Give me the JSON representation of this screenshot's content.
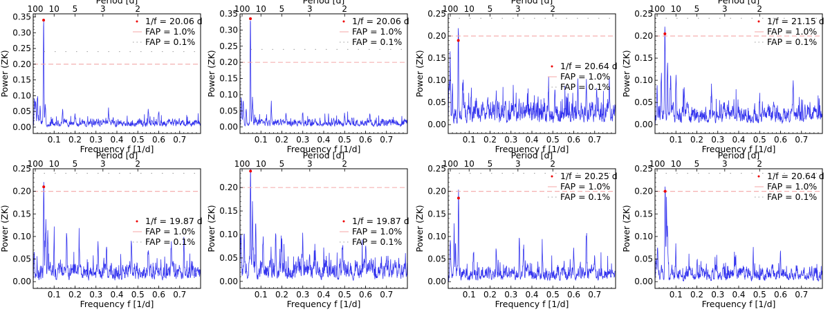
{
  "colors": {
    "series": "#3333ee",
    "peak_marker": "#ee0000",
    "fap_1": "#f4a6a6",
    "fap_01": "#9a9a9a"
  },
  "chart_data": [
    {
      "type": "line",
      "xlabel": "Frequency f [1/d]",
      "ylabel": "Power (ZK)",
      "top_xlabel": "Period [d]",
      "xlim": [
        0,
        0.8
      ],
      "ylim": [
        -0.02,
        0.36
      ],
      "xticks": [
        0.1,
        0.2,
        0.3,
        0.4,
        0.5,
        0.6,
        0.7
      ],
      "yticks": [
        0.0,
        0.05,
        0.1,
        0.15,
        0.2,
        0.25,
        0.3,
        0.35
      ],
      "top_ticks_period": [
        100,
        10,
        5,
        3,
        2
      ],
      "peak": {
        "frequency": 0.0498,
        "power": 0.34,
        "label": "1/f = 20.06 d"
      },
      "fap_levels": [
        {
          "label": "FAP = 1.0%",
          "power": 0.2
        },
        {
          "label": "FAP = 0.1%",
          "power": 0.24
        }
      ],
      "legend_position": "upper right",
      "seed": 11,
      "noise_level": 0.016,
      "extra_peaks": [
        [
          0.006,
          0.11
        ],
        [
          0.012,
          0.09
        ],
        [
          0.02,
          0.11
        ],
        [
          0.033,
          0.06
        ],
        [
          0.058,
          0.08
        ],
        [
          0.14,
          0.05
        ],
        [
          0.2,
          0.045
        ],
        [
          0.36,
          0.045
        ],
        [
          0.55,
          0.045
        ],
        [
          0.6,
          0.05
        ]
      ]
    },
    {
      "type": "line",
      "xlabel": "Frequency f [1/d]",
      "ylabel": "Power (ZK)",
      "top_xlabel": "Period [d]",
      "xlim": [
        0,
        0.8
      ],
      "ylim": [
        -0.02,
        0.35
      ],
      "xticks": [
        0.1,
        0.2,
        0.3,
        0.4,
        0.5,
        0.6,
        0.7
      ],
      "yticks": [
        0.0,
        0.05,
        0.1,
        0.15,
        0.2,
        0.25,
        0.3,
        0.35
      ],
      "top_ticks_period": [
        100,
        10,
        5,
        3,
        2
      ],
      "peak": {
        "frequency": 0.0498,
        "power": 0.335,
        "label": "1/f = 20.06 d"
      },
      "fap_levels": [
        {
          "label": "FAP = 1.0%",
          "power": 0.2
        },
        {
          "label": "FAP = 0.1%",
          "power": 0.24
        }
      ],
      "legend_position": "upper right",
      "seed": 23,
      "noise_level": 0.016,
      "extra_peaks": [
        [
          0.006,
          0.1
        ],
        [
          0.015,
          0.08
        ],
        [
          0.03,
          0.06
        ],
        [
          0.06,
          0.08
        ],
        [
          0.15,
          0.05
        ],
        [
          0.22,
          0.045
        ],
        [
          0.3,
          0.045
        ],
        [
          0.5,
          0.04
        ],
        [
          0.62,
          0.045
        ]
      ]
    },
    {
      "type": "line",
      "xlabel": "Frequency f [1/d]",
      "ylabel": "Power (ZK)",
      "top_xlabel": "Period [d]",
      "xlim": [
        0,
        0.8
      ],
      "ylim": [
        -0.02,
        0.25
      ],
      "xticks": [
        0.1,
        0.2,
        0.3,
        0.4,
        0.5,
        0.6,
        0.7
      ],
      "yticks": [
        0.0,
        0.05,
        0.1,
        0.15,
        0.2,
        0.25
      ],
      "top_ticks_period": [
        100,
        10,
        5,
        3,
        2
      ],
      "peak": {
        "frequency": 0.0484,
        "power": 0.19,
        "label": "1/f = 20.64 d"
      },
      "fap_levels": [
        {
          "label": "FAP = 1.0%",
          "power": 0.2
        },
        {
          "label": "FAP = 0.1%",
          "power": 0.24
        }
      ],
      "legend_position": "center right",
      "seed": 37,
      "noise_level": 0.034,
      "extra_peaks": [
        [
          0.004,
          0.095
        ],
        [
          0.01,
          0.13
        ],
        [
          0.02,
          0.08
        ],
        [
          0.07,
          0.07
        ],
        [
          0.11,
          0.07
        ],
        [
          0.23,
          0.07
        ],
        [
          0.48,
          0.085
        ],
        [
          0.51,
          0.075
        ],
        [
          0.62,
          0.09
        ],
        [
          0.66,
          0.085
        ],
        [
          0.71,
          0.06
        ],
        [
          0.77,
          0.09
        ]
      ]
    },
    {
      "type": "line",
      "xlabel": "Frequency f [1/d]",
      "ylabel": "Power (ZK)",
      "top_xlabel": "Period [d]",
      "xlim": [
        0,
        0.8
      ],
      "ylim": [
        -0.02,
        0.25
      ],
      "xticks": [
        0.1,
        0.2,
        0.3,
        0.4,
        0.5,
        0.6,
        0.7
      ],
      "yticks": [
        0.0,
        0.05,
        0.1,
        0.15,
        0.2,
        0.25
      ],
      "top_ticks_period": [
        100,
        10,
        5,
        3,
        2
      ],
      "peak": {
        "frequency": 0.0473,
        "power": 0.205,
        "label": "1/f = 21.15 d"
      },
      "fap_levels": [
        {
          "label": "FAP = 1.0%",
          "power": 0.2
        },
        {
          "label": "FAP = 0.1%",
          "power": 0.24
        }
      ],
      "legend_position": "upper right",
      "seed": 53,
      "noise_level": 0.03,
      "extra_peaks": [
        [
          0.01,
          0.09
        ],
        [
          0.03,
          0.12
        ],
        [
          0.06,
          0.16
        ],
        [
          0.075,
          0.12
        ],
        [
          0.1,
          0.09
        ],
        [
          0.14,
          0.075
        ],
        [
          0.27,
          0.07
        ],
        [
          0.5,
          0.06
        ],
        [
          0.66,
          0.065
        ]
      ]
    },
    {
      "type": "line",
      "xlabel": "Frequency f [1/d]",
      "ylabel": "Power (ZK)",
      "top_xlabel": "Period [d]",
      "xlim": [
        0,
        0.8
      ],
      "ylim": [
        -0.015,
        0.25
      ],
      "xticks": [
        0.1,
        0.2,
        0.3,
        0.4,
        0.5,
        0.6,
        0.7
      ],
      "yticks": [
        0.0,
        0.05,
        0.1,
        0.15,
        0.2,
        0.25
      ],
      "top_ticks_period": [
        100,
        10,
        5,
        3,
        2
      ],
      "peak": {
        "frequency": 0.0503,
        "power": 0.21,
        "label": "1/f = 19.87 d"
      },
      "fap_levels": [
        {
          "label": "FAP = 1.0%",
          "power": 0.2
        },
        {
          "label": "FAP = 0.1%",
          "power": 0.24
        }
      ],
      "legend_position": "center right",
      "seed": 71,
      "noise_level": 0.026,
      "extra_peaks": [
        [
          0.005,
          0.06
        ],
        [
          0.06,
          0.13
        ],
        [
          0.07,
          0.1
        ],
        [
          0.1,
          0.075
        ],
        [
          0.16,
          0.1
        ],
        [
          0.22,
          0.065
        ],
        [
          0.31,
          0.1
        ],
        [
          0.35,
          0.06
        ],
        [
          0.47,
          0.07
        ],
        [
          0.55,
          0.065
        ],
        [
          0.66,
          0.08
        ],
        [
          0.72,
          0.06
        ]
      ]
    },
    {
      "type": "line",
      "xlabel": "Frequency f [1/d]",
      "ylabel": "Power (ZK)",
      "top_xlabel": "Period [d]",
      "xlim": [
        0,
        0.8
      ],
      "ylim": [
        -0.015,
        0.24
      ],
      "xticks": [
        0.1,
        0.2,
        0.3,
        0.4,
        0.5,
        0.6,
        0.7
      ],
      "yticks": [
        0.0,
        0.05,
        0.1,
        0.15,
        0.2
      ],
      "top_ticks_period": [
        100,
        10,
        5,
        3,
        2
      ],
      "peak": {
        "frequency": 0.0503,
        "power": 0.235,
        "label": "1/f = 19.87 d"
      },
      "fap_levels": [
        {
          "label": "FAP = 1.0%",
          "power": 0.2
        },
        {
          "label": "FAP = 0.1%",
          "power": 0.24
        }
      ],
      "legend_position": "center right",
      "seed": 89,
      "noise_level": 0.03,
      "extra_peaks": [
        [
          0.004,
          0.1
        ],
        [
          0.02,
          0.07
        ],
        [
          0.06,
          0.14
        ],
        [
          0.075,
          0.1
        ],
        [
          0.11,
          0.09
        ],
        [
          0.17,
          0.085
        ],
        [
          0.2,
          0.075
        ],
        [
          0.3,
          0.07
        ],
        [
          0.36,
          0.065
        ],
        [
          0.49,
          0.07
        ],
        [
          0.6,
          0.06
        ]
      ]
    },
    {
      "type": "line",
      "xlabel": "Frequency f [1/d]",
      "ylabel": "Power (ZK)",
      "top_xlabel": "Period [d]",
      "xlim": [
        0,
        0.8
      ],
      "ylim": [
        -0.015,
        0.25
      ],
      "xticks": [
        0.1,
        0.2,
        0.3,
        0.4,
        0.5,
        0.6,
        0.7
      ],
      "yticks": [
        0.0,
        0.05,
        0.1,
        0.15,
        0.2,
        0.25
      ],
      "top_ticks_period": [
        100,
        10,
        5,
        3,
        2
      ],
      "peak": {
        "frequency": 0.0494,
        "power": 0.185,
        "label": "1/f = 20.25 d"
      },
      "fap_levels": [
        {
          "label": "FAP = 1.0%",
          "power": 0.2
        },
        {
          "label": "FAP = 0.1%",
          "power": 0.24
        }
      ],
      "legend_position": "upper right",
      "seed": 101,
      "noise_level": 0.022,
      "extra_peaks": [
        [
          0.01,
          0.07
        ],
        [
          0.028,
          0.1
        ],
        [
          0.035,
          0.075
        ],
        [
          0.12,
          0.055
        ],
        [
          0.23,
          0.055
        ],
        [
          0.34,
          0.11
        ],
        [
          0.36,
          0.08
        ],
        [
          0.45,
          0.065
        ],
        [
          0.6,
          0.065
        ],
        [
          0.66,
          0.095
        ],
        [
          0.7,
          0.05
        ]
      ]
    },
    {
      "type": "line",
      "xlabel": "Frequency f [1/d]",
      "ylabel": "Power (ZK)",
      "top_xlabel": "Period [d]",
      "xlim": [
        0,
        0.8
      ],
      "ylim": [
        -0.015,
        0.25
      ],
      "xticks": [
        0.1,
        0.2,
        0.3,
        0.4,
        0.5,
        0.6,
        0.7
      ],
      "yticks": [
        0.0,
        0.05,
        0.1,
        0.15,
        0.2,
        0.25
      ],
      "top_ticks_period": [
        100,
        10,
        5,
        3,
        2
      ],
      "peak": {
        "frequency": 0.0484,
        "power": 0.2,
        "label": "1/f = 20.64 d"
      },
      "fap_levels": [
        {
          "label": "FAP = 1.0%",
          "power": 0.2
        },
        {
          "label": "FAP = 0.1%",
          "power": 0.24
        }
      ],
      "legend_position": "upper right",
      "seed": 131,
      "noise_level": 0.022,
      "extra_peaks": [
        [
          0.005,
          0.05
        ],
        [
          0.012,
          0.065
        ],
        [
          0.055,
          0.15
        ],
        [
          0.06,
          0.11
        ],
        [
          0.1,
          0.045
        ],
        [
          0.2,
          0.04
        ],
        [
          0.38,
          0.04
        ],
        [
          0.47,
          0.045
        ],
        [
          0.6,
          0.04
        ]
      ]
    }
  ]
}
